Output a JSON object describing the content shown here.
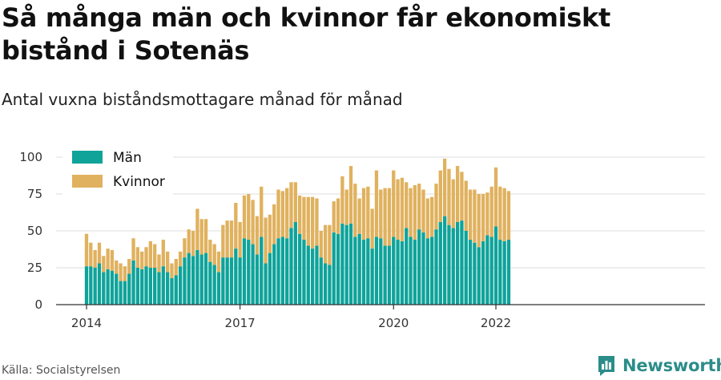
{
  "title": "Så många män och kvinnor får ekonomiskt bistånd i Sotenäs",
  "subtitle": "Antal vuxna biståndsmottagare månad för månad",
  "source": "Källa: Socialstyrelsen",
  "brand": {
    "name": "Newsworthy",
    "icon": "newsworthy-logo-icon"
  },
  "colors": {
    "men": "#0fa39a",
    "women": "#e0b15e",
    "grid": "#dddddd",
    "axis": "#333333"
  },
  "chart_data": {
    "type": "bar",
    "stacked": true,
    "title": "Så många män och kvinnor får ekonomiskt bistånd i Sotenäs",
    "subtitle": "Antal vuxna biståndsmottagare månad för månad",
    "xlabel": "",
    "ylabel": "",
    "ylim": [
      0,
      100
    ],
    "yticks": [
      0,
      25,
      50,
      75,
      100
    ],
    "xticks": [
      "2014",
      "2017",
      "2020",
      "2022"
    ],
    "grid": true,
    "legend": "top-left",
    "start": "2014-01",
    "series": [
      {
        "name": "Män",
        "color": "#0fa39a",
        "values": [
          26,
          26,
          25,
          28,
          22,
          24,
          23,
          21,
          16,
          16,
          21,
          30,
          25,
          24,
          26,
          25,
          25,
          22,
          26,
          22,
          18,
          20,
          26,
          32,
          35,
          33,
          37,
          34,
          35,
          29,
          27,
          22,
          32,
          32,
          32,
          38,
          32,
          45,
          44,
          41,
          34,
          46,
          28,
          35,
          41,
          45,
          46,
          45,
          52,
          56,
          48,
          44,
          40,
          38,
          40,
          32,
          28,
          27,
          49,
          48,
          55,
          54,
          55,
          46,
          48,
          44,
          45,
          38,
          46,
          45,
          40,
          40,
          46,
          44,
          43,
          52,
          46,
          44,
          51,
          49,
          45,
          46,
          51,
          56,
          60,
          54,
          52,
          56,
          57,
          50,
          44,
          42,
          39,
          43,
          47,
          46,
          53,
          44,
          43,
          44
        ]
      },
      {
        "name": "Kvinnor",
        "color": "#e0b15e",
        "values": [
          22,
          16,
          12,
          14,
          11,
          14,
          14,
          9,
          12,
          10,
          10,
          15,
          14,
          12,
          13,
          18,
          16,
          12,
          18,
          14,
          10,
          11,
          10,
          13,
          16,
          17,
          28,
          24,
          23,
          15,
          14,
          14,
          22,
          25,
          25,
          31,
          24,
          29,
          31,
          30,
          26,
          34,
          31,
          26,
          27,
          33,
          31,
          34,
          31,
          27,
          26,
          29,
          33,
          35,
          32,
          18,
          26,
          27,
          21,
          24,
          32,
          24,
          39,
          36,
          24,
          35,
          35,
          27,
          45,
          33,
          39,
          39,
          45,
          41,
          43,
          31,
          33,
          37,
          31,
          29,
          27,
          27,
          31,
          35,
          39,
          38,
          33,
          38,
          33,
          34,
          34,
          36,
          36,
          32,
          29,
          34,
          40,
          36,
          36,
          33
        ]
      }
    ]
  }
}
